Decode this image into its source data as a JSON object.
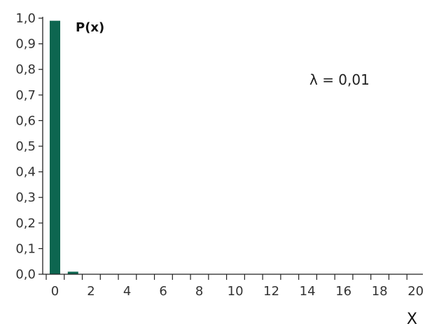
{
  "chart_data": {
    "type": "bar",
    "title": "",
    "ylabel": "P(x)",
    "xlabel": "X",
    "annotation": "λ = 0,01",
    "x": [
      0,
      1,
      2,
      3,
      4,
      5,
      6,
      7,
      8,
      9,
      10,
      11,
      12,
      13,
      14,
      15,
      16,
      17,
      18,
      19,
      20
    ],
    "values": [
      0.99,
      0.0099,
      0,
      0,
      0,
      0,
      0,
      0,
      0,
      0,
      0,
      0,
      0,
      0,
      0,
      0,
      0,
      0,
      0,
      0,
      0
    ],
    "ylim": [
      0,
      1.0
    ],
    "xlim": [
      0,
      20
    ],
    "y_ticks": [
      "0,0",
      "0,1",
      "0,2",
      "0,3",
      "0,4",
      "0,5",
      "0,6",
      "0,7",
      "0,8",
      "0,9",
      "1,0"
    ],
    "x_tick_labels": [
      "0",
      "2",
      "4",
      "6",
      "8",
      "10",
      "12",
      "14",
      "16",
      "18",
      "20"
    ],
    "grid": false,
    "bar_color": "#0d6650",
    "axis_color": "#222222"
  }
}
